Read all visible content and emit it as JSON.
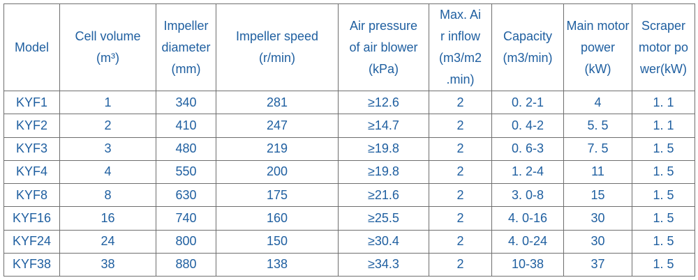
{
  "table": {
    "columns": [
      [
        "Model"
      ],
      [
        "Cell volume",
        "(m³)"
      ],
      [
        "Impeller",
        "diameter",
        "(mm)"
      ],
      [
        "Impeller speed",
        "(r/min)"
      ],
      [
        "Air pressure",
        "of air blower",
        "(kPa)"
      ],
      [
        "Max. Ai",
        "r inflow",
        "(m3/m2",
        ".min)"
      ],
      [
        "Capacity",
        "(m3/min)"
      ],
      [
        "Main motor",
        "power",
        "(kW)"
      ],
      [
        "Scraper",
        "motor po",
        "wer(kW)"
      ]
    ],
    "rows": [
      [
        "KYF1",
        "1",
        "340",
        "281",
        "≥12.6",
        "2",
        "0. 2-1",
        "4",
        "1. 1"
      ],
      [
        "KYF2",
        "2",
        "410",
        "247",
        "≥14.7",
        "2",
        "0. 4-2",
        "5. 5",
        "1. 1"
      ],
      [
        "KYF3",
        "3",
        "480",
        "219",
        "≥19.8",
        "2",
        "0. 6-3",
        "7. 5",
        "1. 5"
      ],
      [
        "KYF4",
        "4",
        "550",
        "200",
        "≥19.8",
        "2",
        "1. 2-4",
        "11",
        "1. 5"
      ],
      [
        "KYF8",
        "8",
        "630",
        "175",
        "≥21.6",
        "2",
        "3. 0-8",
        "15",
        "1. 5"
      ],
      [
        "KYF16",
        "16",
        "740",
        "160",
        "≥25.5",
        "2",
        "4. 0-16",
        "30",
        "1. 5"
      ],
      [
        "KYF24",
        "24",
        "800",
        "150",
        "≥30.4",
        "2",
        "4. 0-24",
        "30",
        "1. 5"
      ],
      [
        "KYF38",
        "38",
        "880",
        "138",
        "≥34.3",
        "2",
        "10-38",
        "37",
        "1. 5"
      ]
    ]
  }
}
